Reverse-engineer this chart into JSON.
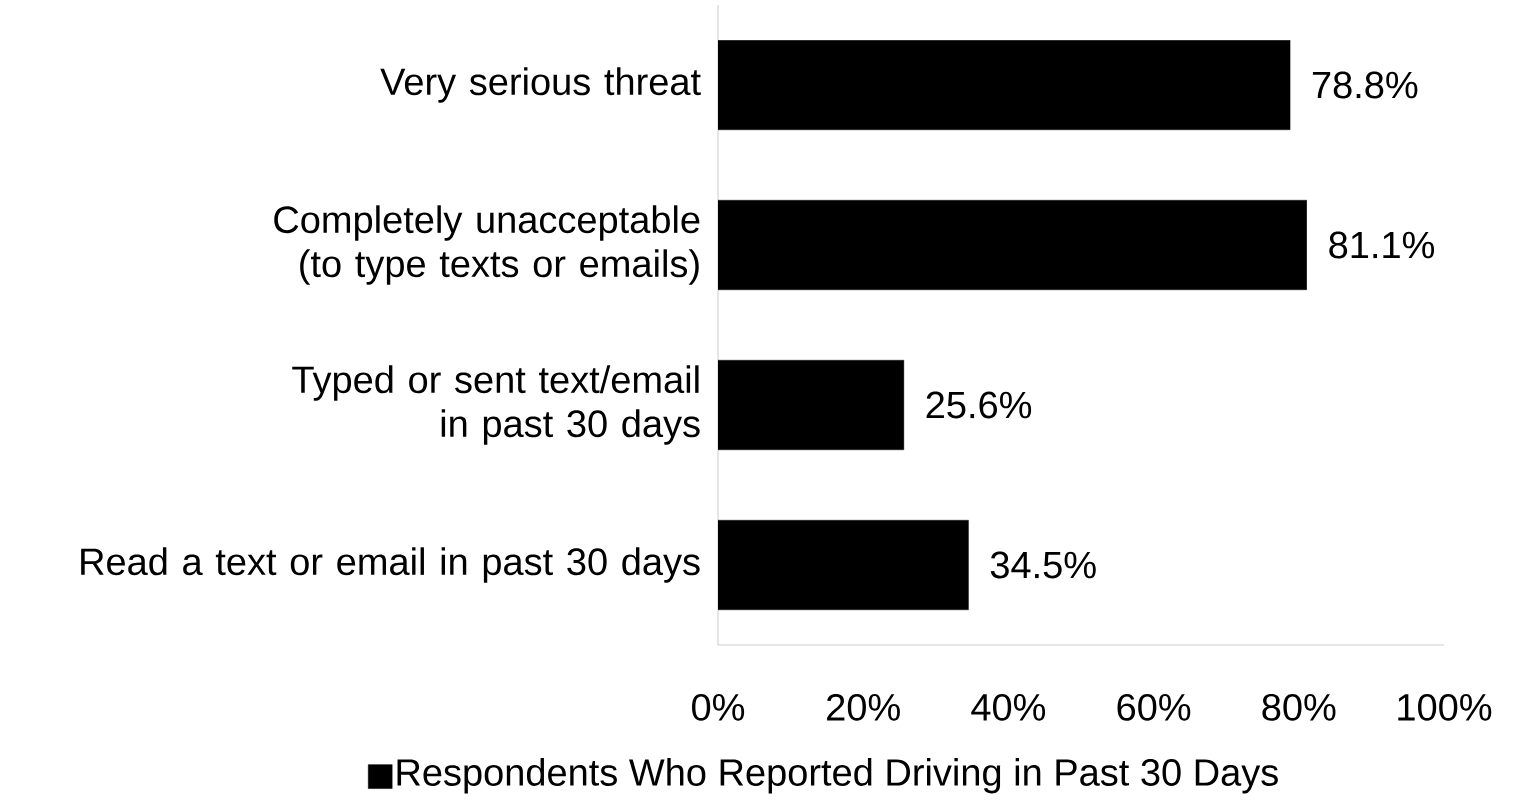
{
  "chart_data": {
    "type": "bar",
    "orientation": "horizontal",
    "categories": [
      "Very serious threat",
      "Completely unacceptable (to type texts or emails)",
      "Typed or sent text/email in past 30 days",
      "Read a text or email in past 30 days"
    ],
    "series": [
      {
        "name": "Respondents Who Reported Driving in Past 30 Days",
        "color": "#000000",
        "values": [
          78.8,
          81.1,
          25.6,
          34.5
        ],
        "value_labels": [
          "78.8%",
          "81.1%",
          "25.6%",
          "34.5%"
        ]
      }
    ],
    "xlim": [
      0,
      100
    ],
    "xticks": [
      {
        "value": 0,
        "label": "0%"
      },
      {
        "value": 20,
        "label": "20%"
      },
      {
        "value": 40,
        "label": "40%"
      },
      {
        "value": 60,
        "label": "60%"
      },
      {
        "value": 80,
        "label": "80%"
      },
      {
        "value": 100,
        "label": "100%"
      }
    ],
    "legend": "bottom"
  }
}
